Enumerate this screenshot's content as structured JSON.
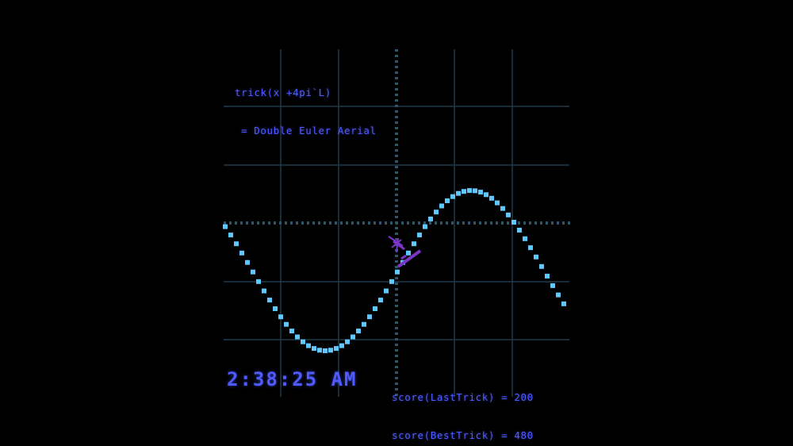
{
  "formula": {
    "line1": "trick(x +4pi`L)",
    "line2": "= Double Euler Aerial"
  },
  "clock": "2:38:25 AM",
  "scores": {
    "last": "score(LastTrick) = 200",
    "best": "score(BestTrick) = 480"
  },
  "colors": {
    "background": "#000000",
    "grid": "#1f3a4a",
    "wave": "#5fc8ff",
    "text": "#4f5bff",
    "rider": "#7a35c8"
  },
  "icons": {
    "rider": "sine-rider-sprite"
  }
}
